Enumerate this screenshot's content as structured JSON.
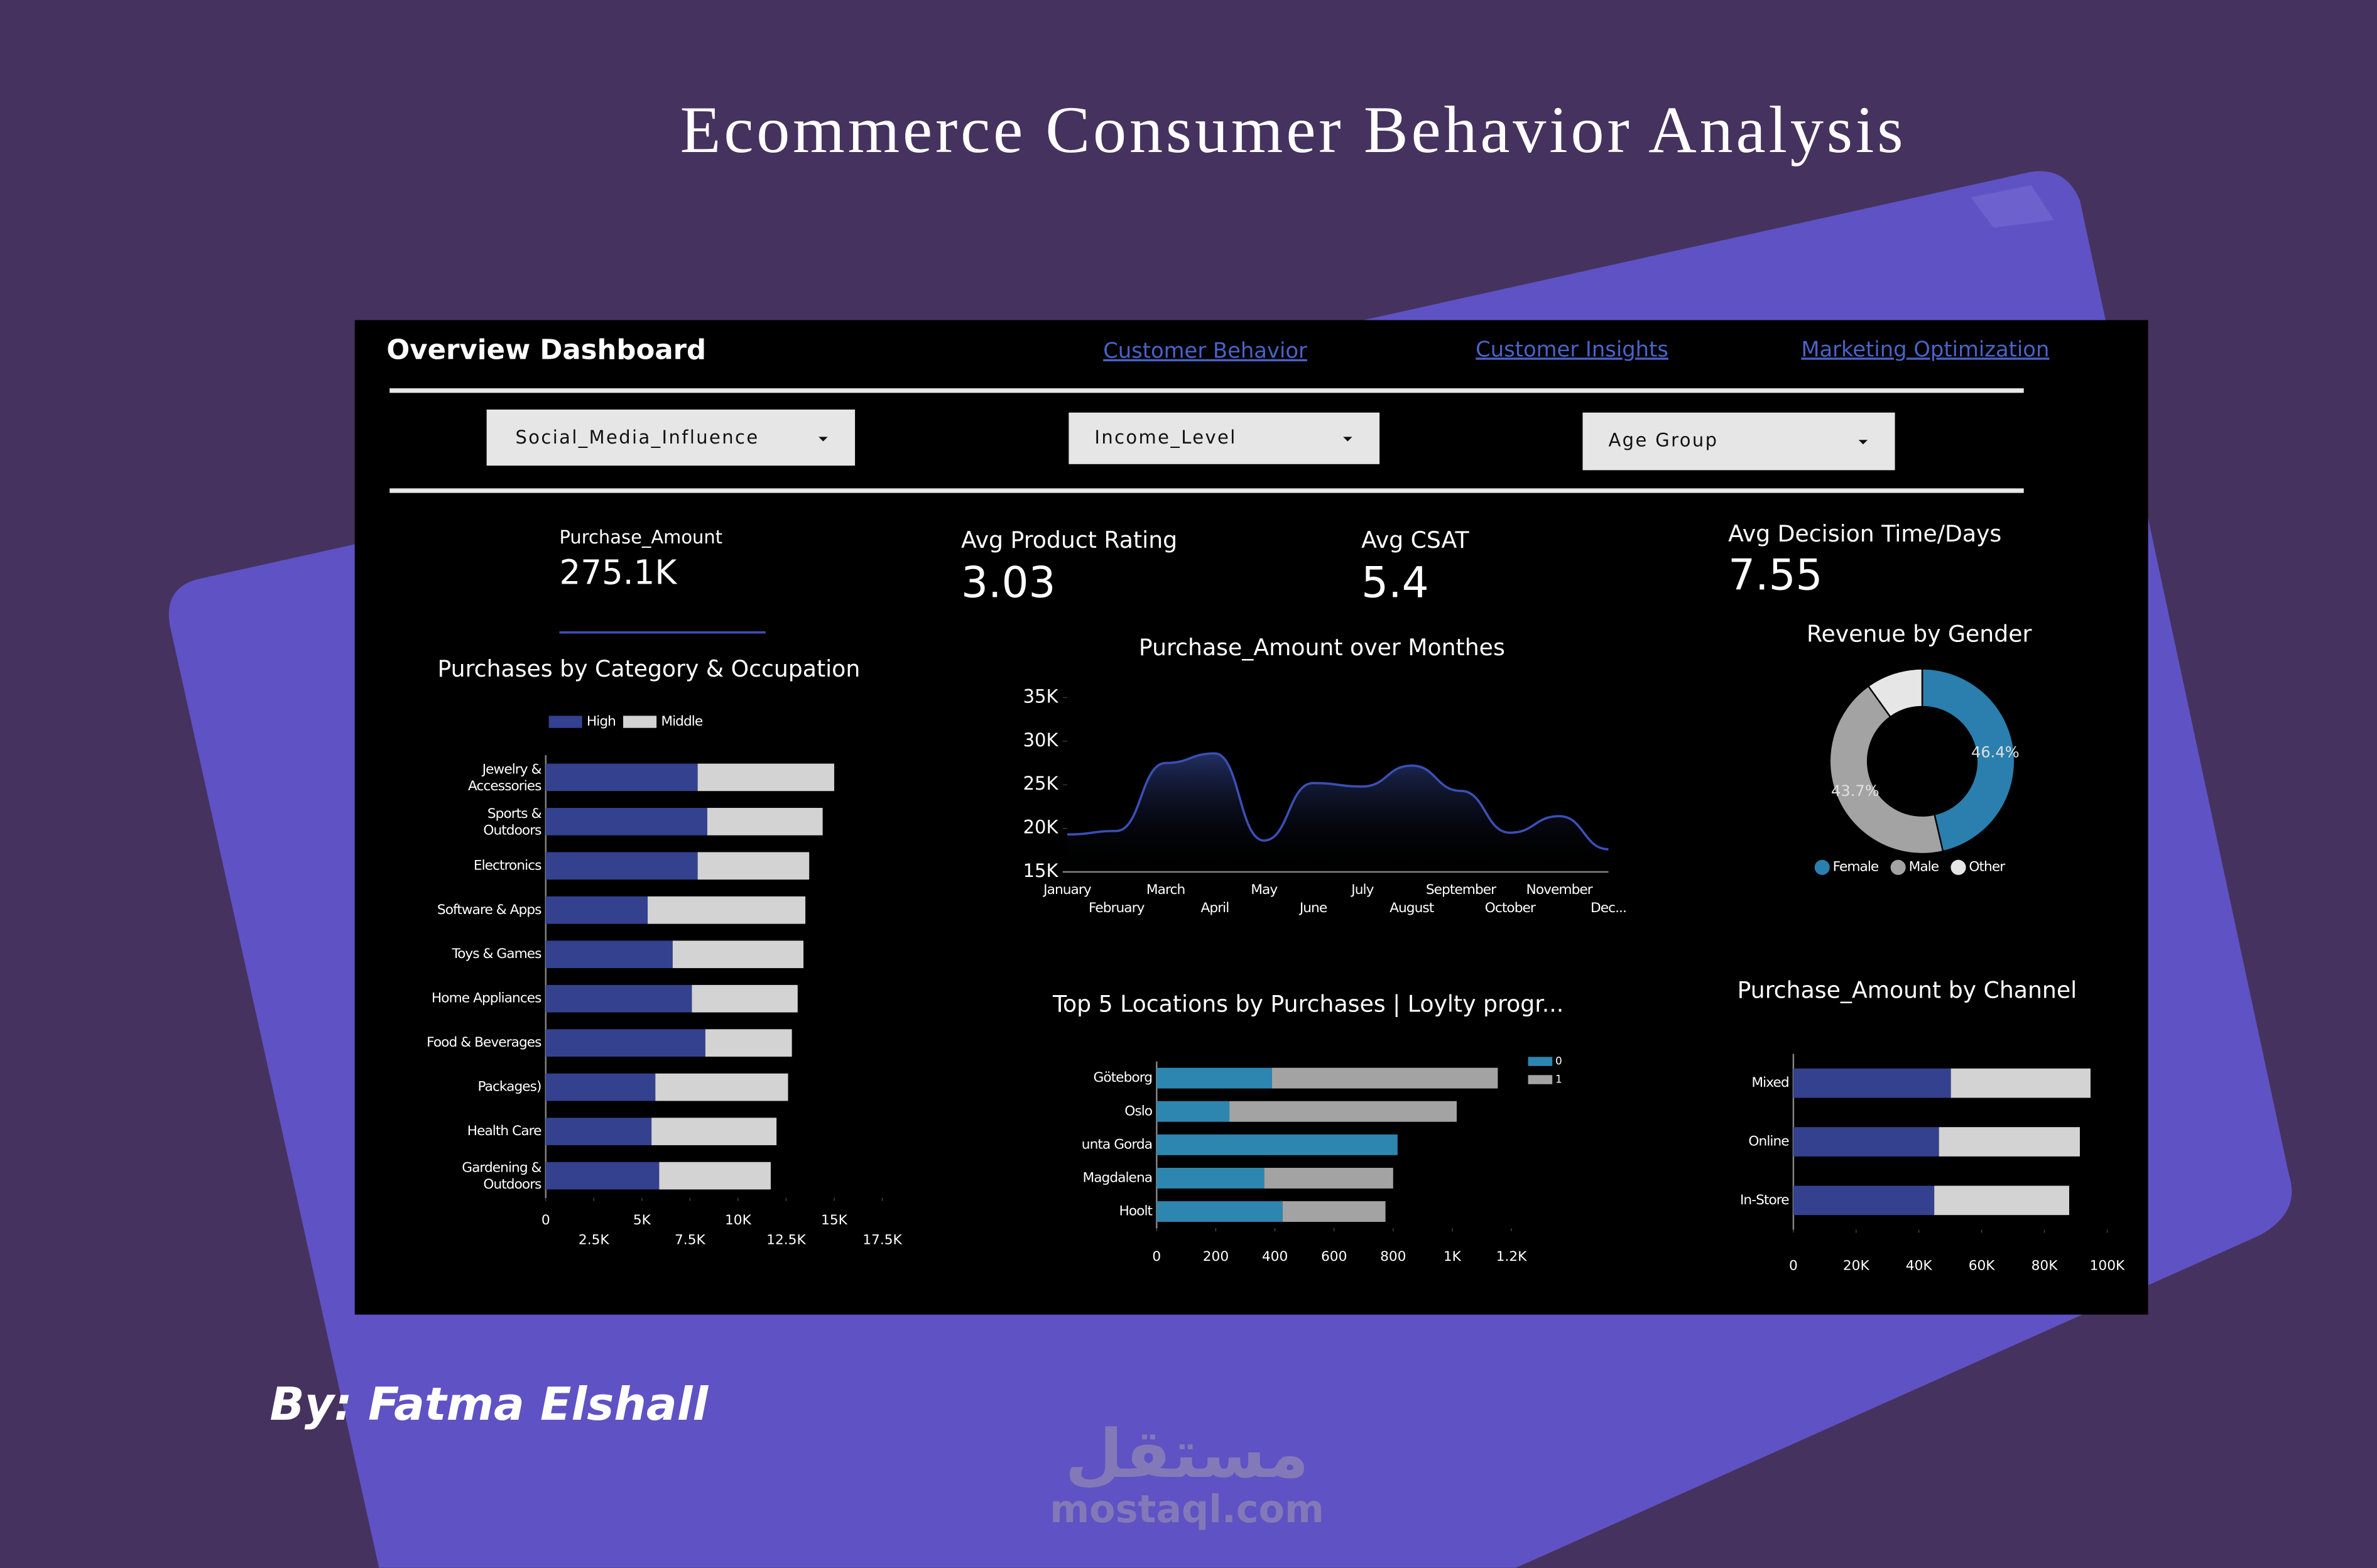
{
  "title": "Ecommerce Consumer Behavior Analysis",
  "author": "By: Fatma Elshall",
  "watermark": {
    "arabic": "مستقل",
    "site": "mostaql.com"
  },
  "dashboard": {
    "title": "Overview Dashboard",
    "tabs": [
      "Customer Behavior",
      "Customer Insights",
      "Marketing Optimization"
    ],
    "filters": [
      "Social_Media_Influence",
      "Income_Level",
      "Age Group"
    ],
    "kpis": [
      {
        "label": "Purchase_Amount",
        "value": "275.1K"
      },
      {
        "label": "Avg Product Rating",
        "value": "3.03"
      },
      {
        "label": "Avg CSAT",
        "value": "5.4"
      },
      {
        "label": "Avg Decision Time/Days",
        "value": "7.55"
      }
    ]
  },
  "chart_data": [
    {
      "type": "hbar",
      "title": "Purchases by Category & Occupation",
      "categories": [
        "Jewelry & Accessories",
        "Sports & Outdoors",
        "Electronics",
        "Software & Apps",
        "Toys & Games",
        "Home Appliances",
        "Food & Beverages",
        "Packages)",
        "Health Care",
        "Gardening & Outdoors"
      ],
      "series": [
        {
          "name": "High",
          "color": "#34418f",
          "values": [
            7900,
            8400,
            7900,
            5300,
            6600,
            7600,
            8300,
            5700,
            5500,
            5900
          ]
        },
        {
          "name": "Middle",
          "color": "#d3d3d3",
          "values": [
            7100,
            6000,
            5800,
            8200,
            6800,
            5500,
            4500,
            6900,
            6500,
            5800
          ]
        }
      ],
      "xlim": [
        0,
        17500
      ],
      "xticks": [
        0,
        {
          "value": 2500,
          "label": "2.5K"
        },
        {
          "value": 5000,
          "label": "5K"
        },
        {
          "value": 7500,
          "label": "7.5K"
        },
        {
          "value": 10000,
          "label": "10K"
        },
        {
          "value": 12500,
          "label": "12.5K"
        },
        {
          "value": 15000,
          "label": "15K"
        },
        {
          "value": 17500,
          "label": "17.5K"
        }
      ],
      "legend": "top-left"
    },
    {
      "type": "area",
      "title": "Purchase_Amount over Monthes",
      "categories": [
        "January",
        "February",
        "March",
        "April",
        "May",
        "June",
        "July",
        "August",
        "September",
        "October",
        "November",
        "Dec..."
      ],
      "series": [
        {
          "color": "#3b4fb5",
          "values": [
            19300,
            19700,
            27500,
            28600,
            18600,
            25200,
            24800,
            27200,
            24300,
            19500,
            21400,
            17600
          ]
        }
      ],
      "ylim": [
        15000,
        35000
      ],
      "yticks": [
        {
          "value": 15000,
          "label": "15K"
        },
        {
          "value": 20000,
          "label": "20K"
        },
        {
          "value": 25000,
          "label": "25K"
        },
        {
          "value": 30000,
          "label": "30K"
        },
        {
          "value": 35000,
          "label": "35K"
        }
      ]
    },
    {
      "type": "donut",
      "title": "Revenue by Gender",
      "categories": [
        "Female",
        "Male",
        "Other"
      ],
      "values": [
        46.4,
        43.7,
        9.9
      ],
      "value_labels": [
        "46.4%",
        "43.7%",
        null
      ],
      "colors": [
        "#2a7fae",
        "#a3a3a3",
        "#e6e6e6"
      ],
      "legend": "bottom"
    },
    {
      "type": "hbar",
      "title": "Top 5 Locations by Purchases | Loylty progr...",
      "categories": [
        "Göteborg",
        "Oslo",
        "unta Gorda",
        "Magdalena",
        "Hoolt"
      ],
      "series": [
        {
          "name": "0",
          "color": "#2d86b0",
          "values": [
            390,
            246,
            815,
            364,
            426
          ]
        },
        {
          "name": "1",
          "color": "#a3a3a3",
          "values": [
            764,
            769,
            0,
            436,
            348
          ]
        }
      ],
      "xlim": [
        0,
        1200
      ],
      "xticks": [
        0,
        200,
        400,
        600,
        800,
        {
          "value": 1000,
          "label": "1K"
        },
        {
          "value": 1200,
          "label": "1.2K"
        }
      ],
      "legend": "top-right"
    },
    {
      "type": "hbar",
      "title": "Purchase_Amount by Channel",
      "categories": [
        "Mixed",
        "Online",
        "In-Store"
      ],
      "series": [
        {
          "color": "#34418f",
          "values": [
            50200,
            46400,
            44900
          ]
        },
        {
          "color": "#d3d3d3",
          "values": [
            44500,
            44900,
            43000
          ]
        }
      ],
      "xlim": [
        0,
        100000
      ],
      "xticks": [
        0,
        {
          "value": 20000,
          "label": "20K"
        },
        {
          "value": 40000,
          "label": "40K"
        },
        {
          "value": 60000,
          "label": "60K"
        },
        {
          "value": 80000,
          "label": "80K"
        },
        {
          "value": 100000,
          "label": "100K"
        }
      ]
    }
  ]
}
